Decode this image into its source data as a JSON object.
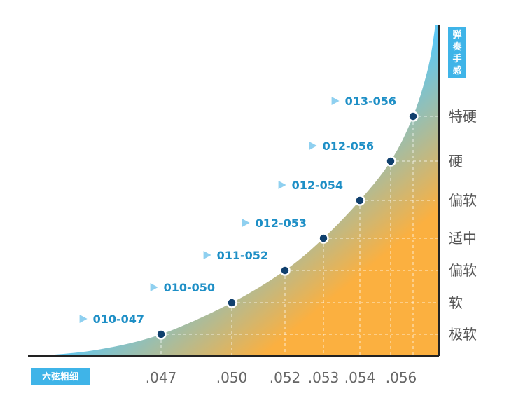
{
  "chart_data": {
    "type": "area",
    "y_axis_title": "弹奏手感",
    "x_axis_title": "六弦粗细",
    "categories": [
      ".047",
      ".050",
      ".052",
      ".053",
      ".054",
      ".056"
    ],
    "y_levels": [
      "极软",
      "软",
      "偏软",
      "适中",
      "偏软",
      "硬",
      "特硬"
    ],
    "points": [
      {
        "label": "010-047",
        "x": ".047",
        "level": "极软"
      },
      {
        "label": "010-050",
        "x": ".050",
        "level": "软"
      },
      {
        "label": "011-052",
        "x": ".052",
        "level": "偏软"
      },
      {
        "label": "012-053",
        "x": ".053",
        "level": "适中"
      },
      {
        "label": "012-054",
        "x": ".054",
        "level": "偏软"
      },
      {
        "label": "012-056",
        "x": ".056",
        "level": "硬"
      },
      {
        "label": "013-056",
        "x": ".056",
        "level": "特硬"
      }
    ],
    "colors": {
      "fill_light": "#5ec7f2",
      "fill_warm": "#fbb040",
      "marker": "#10406e",
      "label": "#1e8fc6",
      "badge": "#3fb4e8",
      "axis": "#222222",
      "grid": "#ffffff"
    }
  }
}
